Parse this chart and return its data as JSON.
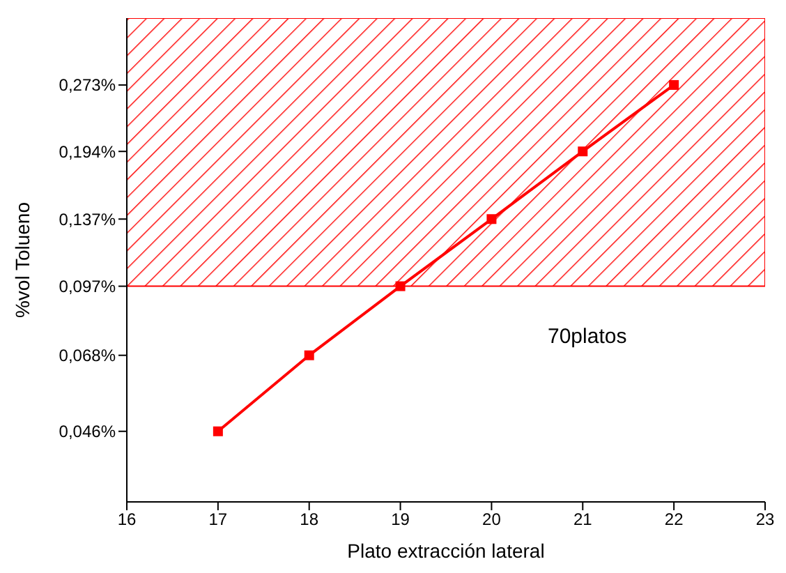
{
  "chart_data": {
    "type": "line",
    "xlabel": "Plato extracción lateral",
    "ylabel": "%vol Tolueno",
    "annotations": [
      "70platos"
    ],
    "x": [
      17,
      18,
      19,
      20,
      21,
      22
    ],
    "series": [
      {
        "color": "#ff0000",
        "values": [
          0.046,
          0.068,
          0.097,
          0.137,
          0.194,
          0.273
        ]
      }
    ],
    "xlim": [
      16,
      23
    ],
    "xticks": [
      16,
      17,
      18,
      19,
      20,
      21,
      22,
      23
    ],
    "ylim": [
      0.032,
      0.385
    ],
    "log": "y",
    "yticks": [
      {
        "value": 0.046,
        "label": "0,046%"
      },
      {
        "value": 0.068,
        "label": "0,068%"
      },
      {
        "value": 0.097,
        "label": "0,097%"
      },
      {
        "value": 0.137,
        "label": "0,137%"
      },
      {
        "value": 0.194,
        "label": "0,194%"
      },
      {
        "value": 0.273,
        "label": "0,273%"
      }
    ],
    "bands": [
      {
        "axis": "y",
        "from": 0.097,
        "to": 0.385,
        "color": "#ff0000"
      }
    ],
    "marker": "square",
    "line_style": "solid",
    "grid": false,
    "legend": false
  }
}
